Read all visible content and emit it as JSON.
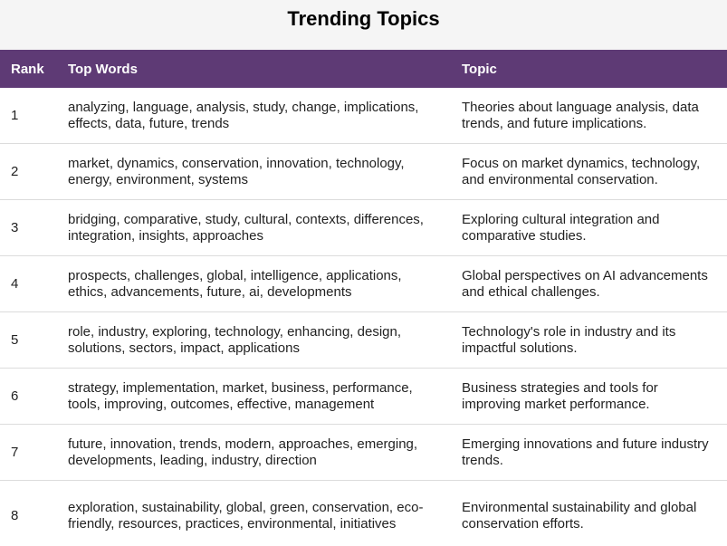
{
  "title": "Trending Topics",
  "columns": {
    "rank": "Rank",
    "words": "Top Words",
    "topic": "Topic"
  },
  "rows": [
    {
      "rank": "1",
      "words": "analyzing, language, analysis, study, change, implications, effects, data, future, trends",
      "topic": "Theories about language analysis, data trends, and future implications."
    },
    {
      "rank": "2",
      "words": "market, dynamics, conservation, innovation, technology, energy, environment, systems",
      "topic": "Focus on market dynamics, technology, and environmental conservation."
    },
    {
      "rank": "3",
      "words": "bridging, comparative, study, cultural, contexts, differences, integration, insights, approaches",
      "topic": "Exploring cultural integration and comparative studies."
    },
    {
      "rank": "4",
      "words": "prospects, challenges, global, intelligence, applications, ethics, advancements, future, ai, developments",
      "topic": "Global perspectives on AI advancements and ethical challenges."
    },
    {
      "rank": "5",
      "words": "role, industry, exploring, technology, enhancing, design, solutions, sectors, impact, applications",
      "topic": "Technology's role in industry and its impactful solutions."
    },
    {
      "rank": "6",
      "words": "strategy, implementation, market, business, performance, tools, improving, outcomes, effective, management",
      "topic": "Business strategies and tools for improving market performance."
    },
    {
      "rank": "7",
      "words": "future, innovation, trends, modern, approaches, emerging, developments, leading, industry, direction",
      "topic": "Emerging innovations and future industry trends."
    },
    {
      "rank": "8",
      "words": "exploration, sustainability, global, green, conservation, eco-friendly, resources, practices, environmental, initiatives",
      "topic": "Environmental sustainability and global conservation efforts."
    }
  ]
}
